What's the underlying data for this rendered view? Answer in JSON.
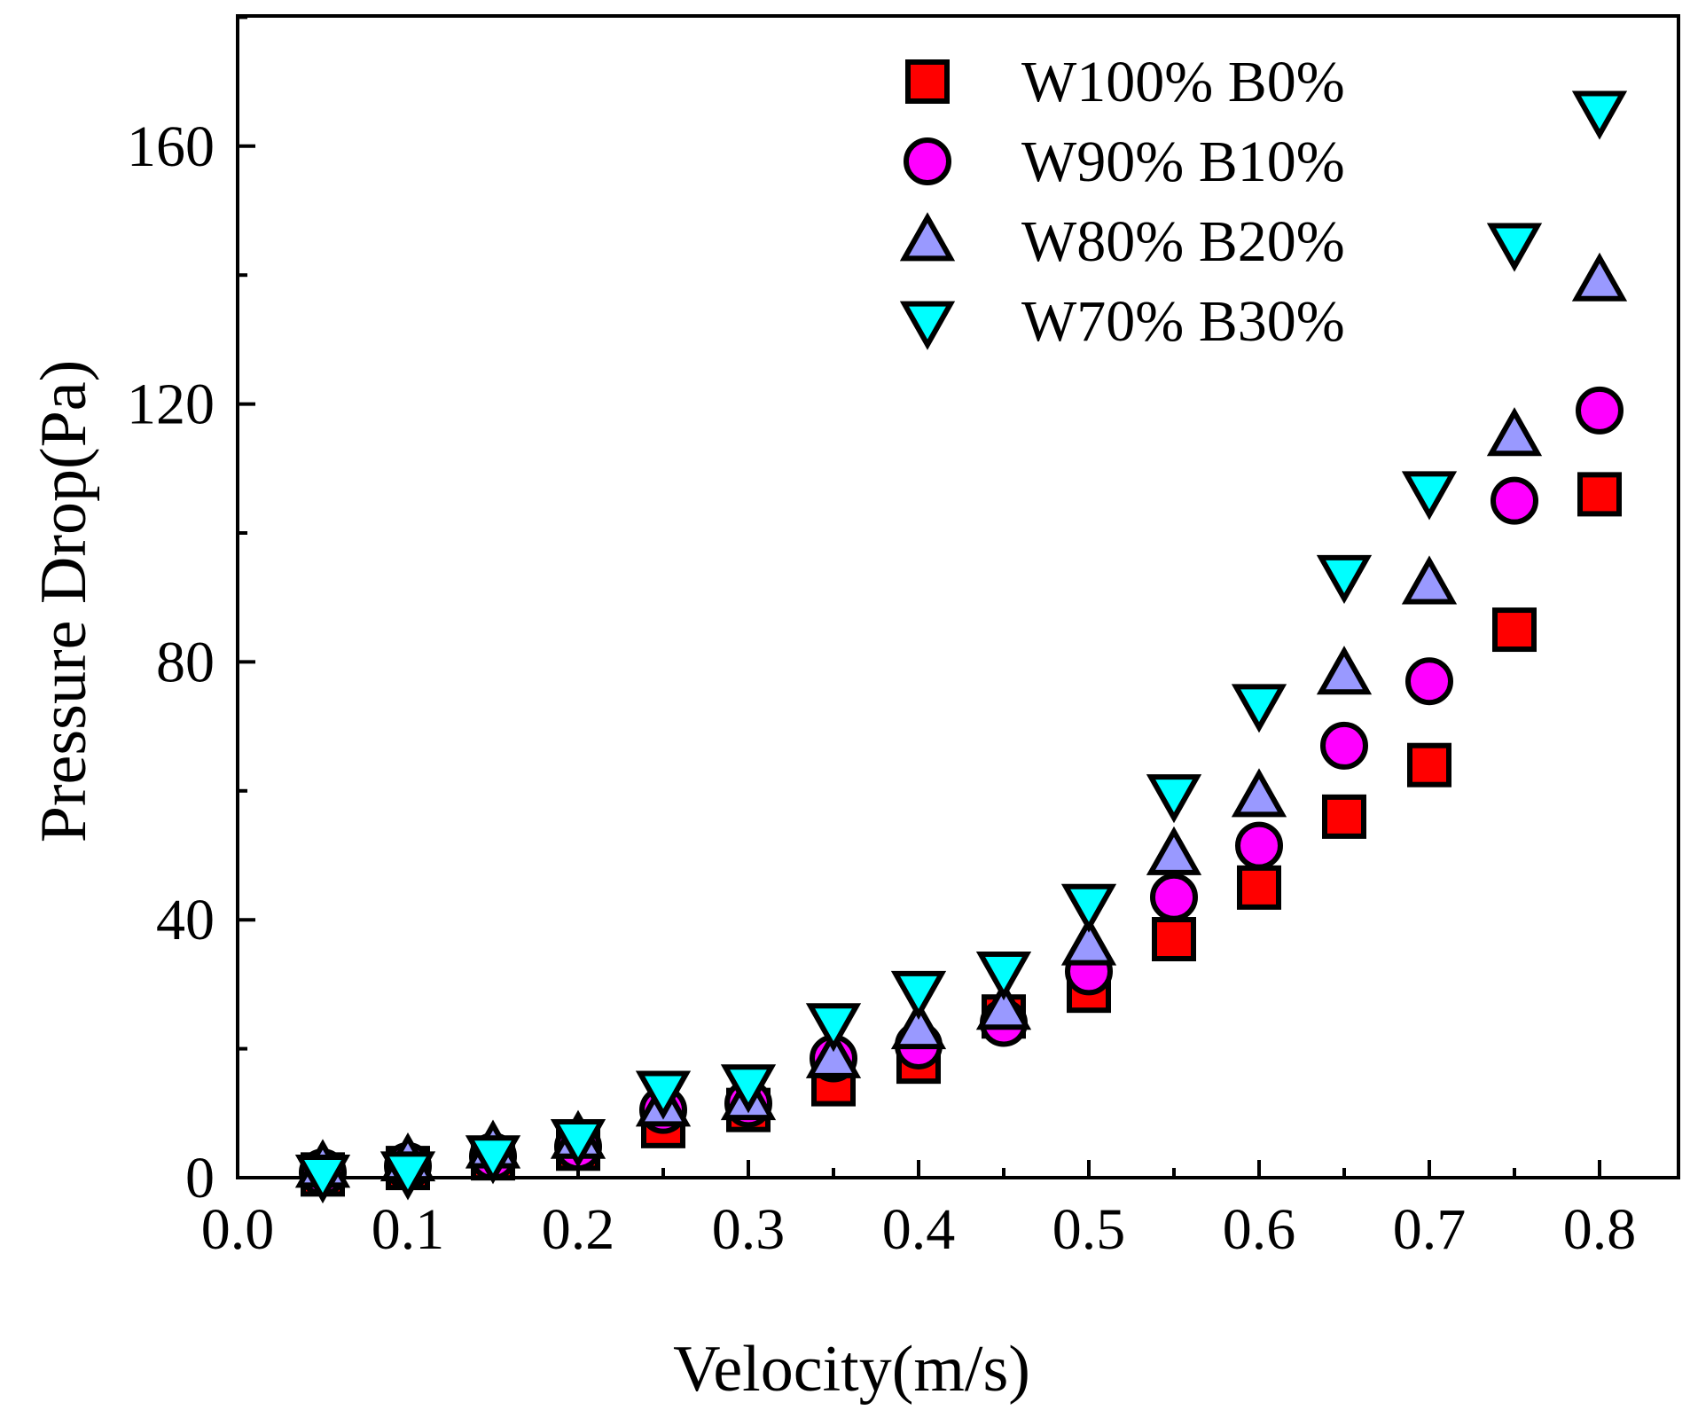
{
  "chart_data": {
    "type": "scatter",
    "title": "",
    "xlabel": "Velocity(m/s)",
    "ylabel": "Pressure Drop(Pa)",
    "xlim": [
      0.0,
      0.85
    ],
    "ylim": [
      0,
      180
    ],
    "xticks": [
      0.0,
      0.1,
      0.2,
      0.3,
      0.4,
      0.5,
      0.6,
      0.7,
      0.8
    ],
    "xtick_labels": [
      "0.0",
      "0.1",
      "0.2",
      "0.3",
      "0.4",
      "0.5",
      "0.6",
      "0.7",
      "0.8"
    ],
    "yticks": [
      0,
      40,
      80,
      120,
      160
    ],
    "ytick_labels": [
      "0",
      "40",
      "80",
      "120",
      "160"
    ],
    "legend_position": "top-right",
    "x": [
      0.05,
      0.1,
      0.15,
      0.2,
      0.25,
      0.3,
      0.35,
      0.4,
      0.45,
      0.5,
      0.55,
      0.6,
      0.65,
      0.7,
      0.75,
      0.8
    ],
    "series": [
      {
        "name": "W100% B0%",
        "marker": "square",
        "color": "#ff0000",
        "values": [
          0.5,
          1.5,
          3,
          4.5,
          8,
          10.5,
          14.5,
          18,
          25,
          29,
          37,
          45,
          56,
          64,
          85,
          106
        ]
      },
      {
        "name": "W90% B10%",
        "marker": "circle",
        "color": "#ff00ff",
        "values": [
          0.8,
          1.8,
          3.3,
          4.8,
          10.5,
          11.5,
          18.5,
          20.5,
          24,
          32,
          43.5,
          51.5,
          67,
          77,
          105,
          119
        ]
      },
      {
        "name": "W80% B20%",
        "marker": "triangle-up",
        "color": "#9999ff",
        "values": [
          1.5,
          2.5,
          4.5,
          6,
          11,
          12,
          18.5,
          23,
          26,
          36,
          50,
          59,
          78,
          92,
          115,
          139
        ]
      },
      {
        "name": "W70% B30%",
        "marker": "triangle-down",
        "color": "#00ffff",
        "values": [
          0.5,
          1,
          3.5,
          6,
          13.5,
          14.5,
          24,
          29,
          32,
          42.5,
          59.5,
          73.5,
          93.5,
          106.5,
          145,
          165.5
        ]
      }
    ]
  }
}
